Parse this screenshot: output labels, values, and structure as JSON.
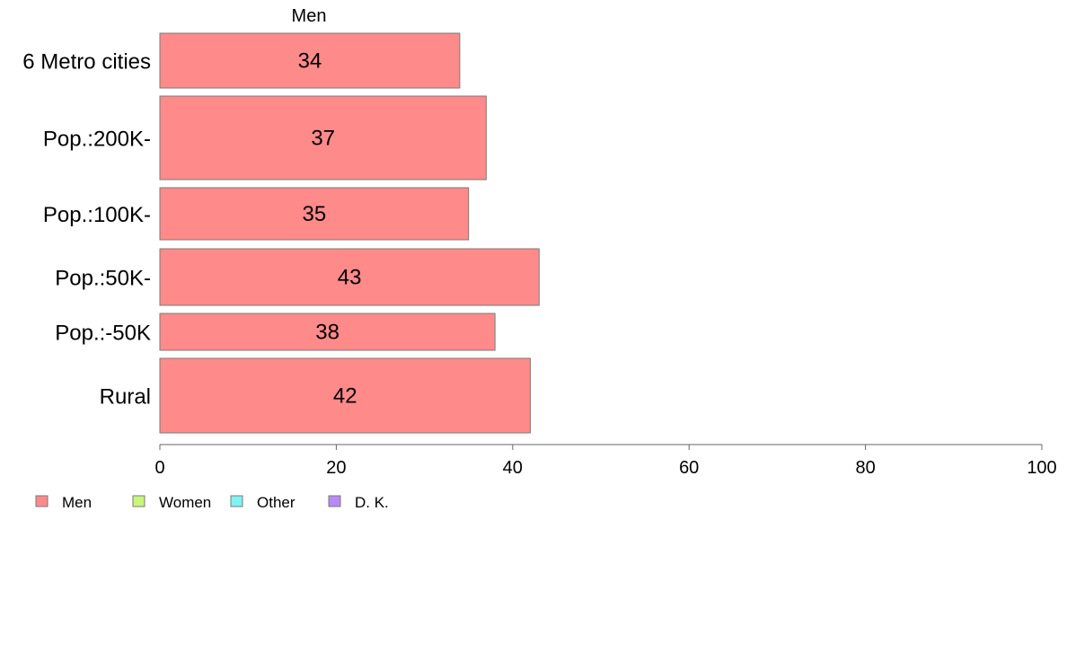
{
  "chart_data": {
    "type": "bar",
    "orientation": "horizontal",
    "bar_widths": "variable",
    "series_label": "Men",
    "categories": [
      "6 Metro cities",
      "Pop.:200K-",
      "Pop.:100K-",
      "Pop.:50K-",
      "Pop.:-50K",
      "Rural"
    ],
    "values": [
      34,
      37,
      35,
      43,
      38,
      42
    ],
    "data_labels": [
      "34",
      "37",
      "35",
      "43",
      "38",
      "42"
    ],
    "xlim": [
      0,
      100
    ],
    "xticks": [
      0,
      20,
      40,
      60,
      80,
      100
    ],
    "grid": false,
    "legend": {
      "placement": "bottom-left",
      "items": [
        {
          "label": "Men",
          "color": "#ff8a8a"
        },
        {
          "label": "Women",
          "color": "#c8f57a"
        },
        {
          "label": "Other",
          "color": "#80f2f2"
        },
        {
          "label": "D. K.",
          "color": "#b98af2"
        }
      ]
    },
    "colors": {
      "bar": "#ff8a8a",
      "bar_border": "#7a7a7a",
      "axis": "#666666"
    }
  }
}
